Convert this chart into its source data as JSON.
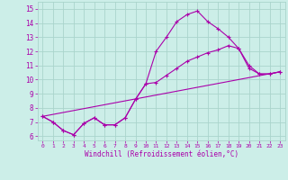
{
  "background_color": "#cceee8",
  "grid_color": "#aad4cc",
  "line_color": "#aa00aa",
  "xlabel": "Windchill (Refroidissement éolien,°C)",
  "ylim": [
    5.7,
    15.5
  ],
  "xlim": [
    -0.5,
    23.5
  ],
  "yticks": [
    6,
    7,
    8,
    9,
    10,
    11,
    12,
    13,
    14,
    15
  ],
  "xticks": [
    0,
    1,
    2,
    3,
    4,
    5,
    6,
    7,
    8,
    9,
    10,
    11,
    12,
    13,
    14,
    15,
    16,
    17,
    18,
    19,
    20,
    21,
    22,
    23
  ],
  "line1_x": [
    0,
    1,
    2,
    3,
    4,
    5,
    6,
    7,
    8,
    9,
    10,
    11,
    12,
    13,
    14,
    15,
    16,
    17,
    18,
    19,
    20,
    21,
    22,
    23
  ],
  "line1_y": [
    7.4,
    7.0,
    6.4,
    6.1,
    6.9,
    7.3,
    6.8,
    6.8,
    7.3,
    8.6,
    9.7,
    12.0,
    13.0,
    14.1,
    14.6,
    14.85,
    14.1,
    13.6,
    13.0,
    12.2,
    10.8,
    10.4,
    10.4,
    10.55
  ],
  "line2_x": [
    0,
    1,
    2,
    3,
    4,
    5,
    6,
    7,
    8,
    9,
    10,
    11,
    12,
    13,
    14,
    15,
    16,
    17,
    18,
    19,
    20,
    21,
    22,
    23
  ],
  "line2_y": [
    7.4,
    7.0,
    6.4,
    6.1,
    6.9,
    7.3,
    6.8,
    6.8,
    7.3,
    8.6,
    9.7,
    9.8,
    10.3,
    10.8,
    11.3,
    11.6,
    11.9,
    12.1,
    12.4,
    12.2,
    11.0,
    10.4,
    10.4,
    10.55
  ],
  "line3_x": [
    0,
    23
  ],
  "line3_y": [
    7.4,
    10.55
  ]
}
